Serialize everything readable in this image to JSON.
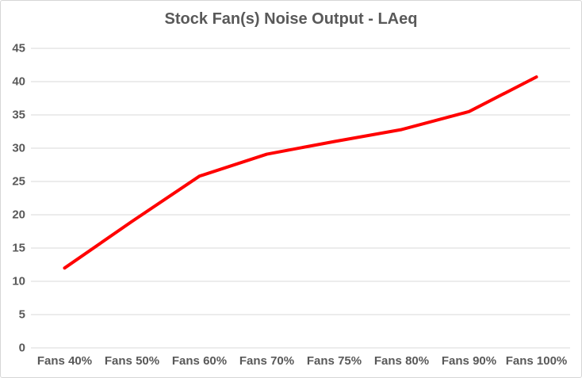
{
  "chart_data": {
    "type": "line",
    "title": "Stock Fan(s) Noise Output - LAeq",
    "categories": [
      "Fans 40%",
      "Fans 50%",
      "Fans 60%",
      "Fans 70%",
      "Fans 75%",
      "Fans 80%",
      "Fans 90%",
      "Fans 100%"
    ],
    "series": [
      {
        "name": "LAeq",
        "values": [
          12,
          19,
          25.8,
          29.1,
          31,
          32.8,
          35.5,
          40.7
        ],
        "color": "#FF0000"
      }
    ],
    "xlabel": "",
    "ylabel": "",
    "ylim": [
      0,
      45
    ],
    "yticks": [
      0,
      5,
      10,
      15,
      20,
      25,
      30,
      35,
      40,
      45
    ],
    "grid": true,
    "legend": "none",
    "colors": {
      "gridline": "#D9D9D9",
      "text": "#595959",
      "background": "#FFFFFF",
      "border": "#D6D6D6"
    }
  }
}
